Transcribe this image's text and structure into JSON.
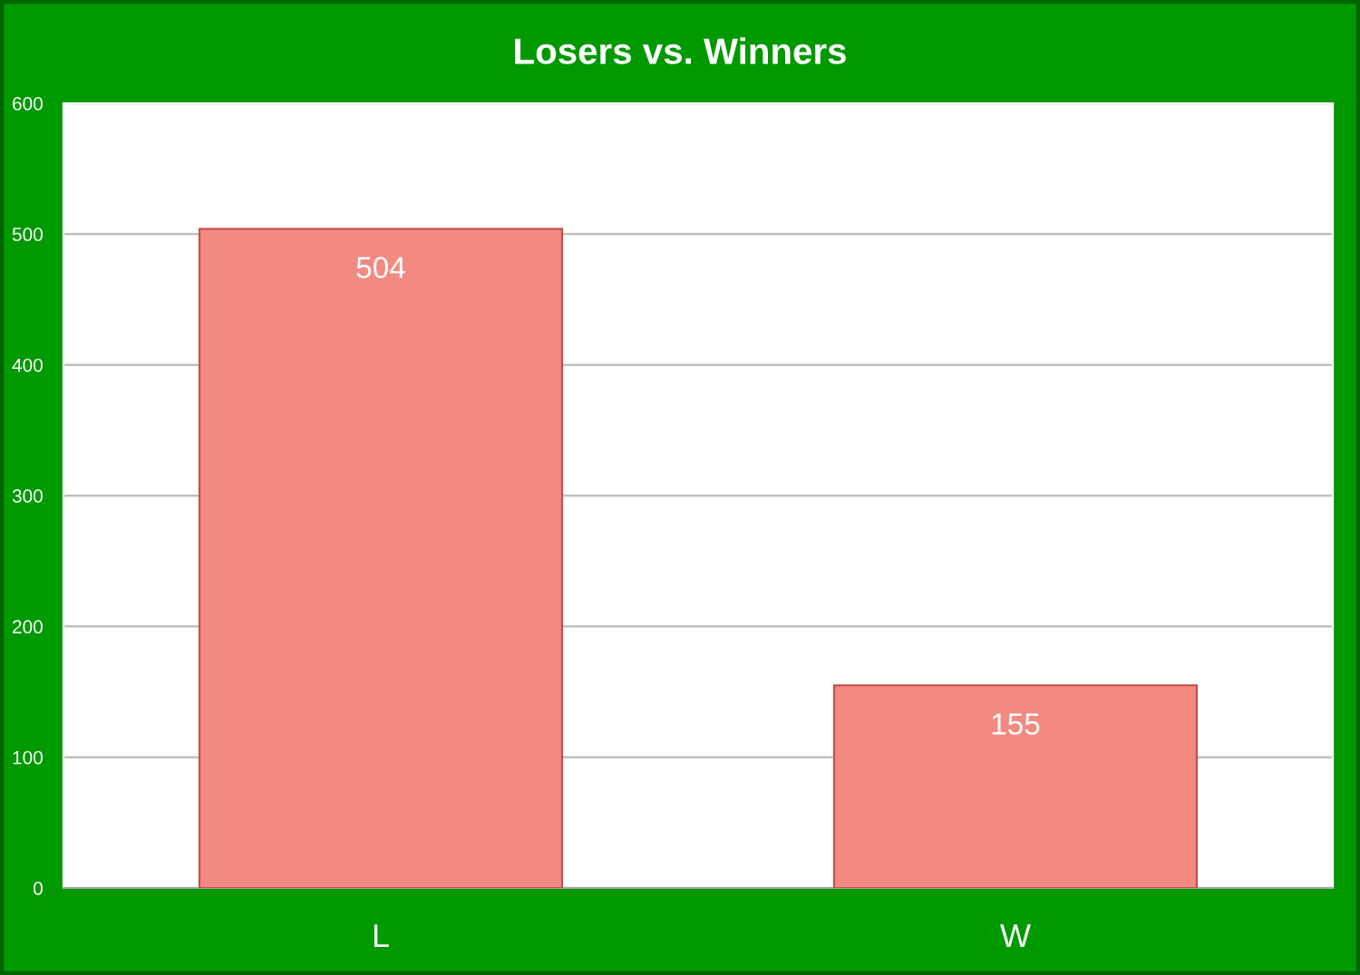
{
  "chart_data": {
    "type": "bar",
    "title": "Losers vs. Winners",
    "categories": [
      "L",
      "W"
    ],
    "values": [
      504,
      155
    ],
    "color": "#f28a82",
    "ylim": [
      0,
      600
    ],
    "yticks": [
      0,
      100,
      200,
      300,
      400,
      500,
      600
    ],
    "grid": "y",
    "data_labels": true
  }
}
